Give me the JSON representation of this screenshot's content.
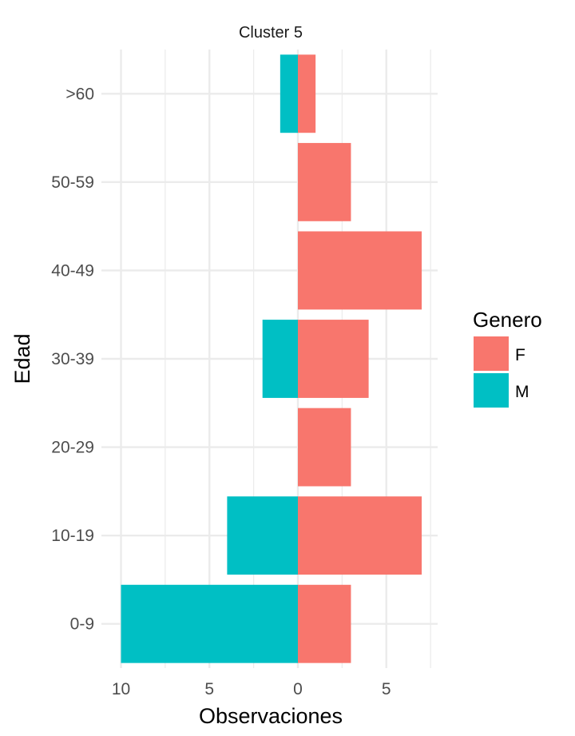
{
  "chart_data": {
    "type": "bar",
    "orientation": "horizontal",
    "stacking": "diverging",
    "title": "Cluster 5",
    "xlabel": "Observaciones",
    "ylabel": "Edad",
    "categories": [
      "0-9",
      "10-19",
      "20-29",
      "30-39",
      "40-49",
      "50-59",
      ">60"
    ],
    "series": [
      {
        "name": "F",
        "color": "#F8766D",
        "values": [
          3,
          7,
          3,
          4,
          7,
          3,
          1
        ]
      },
      {
        "name": "M",
        "color": "#00BFC4",
        "values": [
          -10,
          -4,
          0,
          -2,
          0,
          0,
          -1
        ]
      }
    ],
    "xlim": [
      -10.5,
      7.8
    ],
    "x_ticks": [
      {
        "value": -10,
        "label": "10"
      },
      {
        "value": -5,
        "label": "5"
      },
      {
        "value": 0,
        "label": "0"
      },
      {
        "value": 5,
        "label": "5"
      }
    ],
    "x_minor_ticks": [
      -7.5,
      -2.5,
      2.5,
      7.5
    ],
    "legend": {
      "title": "Genero",
      "position": "right",
      "entries": [
        "F",
        "M"
      ]
    },
    "grid": true
  }
}
